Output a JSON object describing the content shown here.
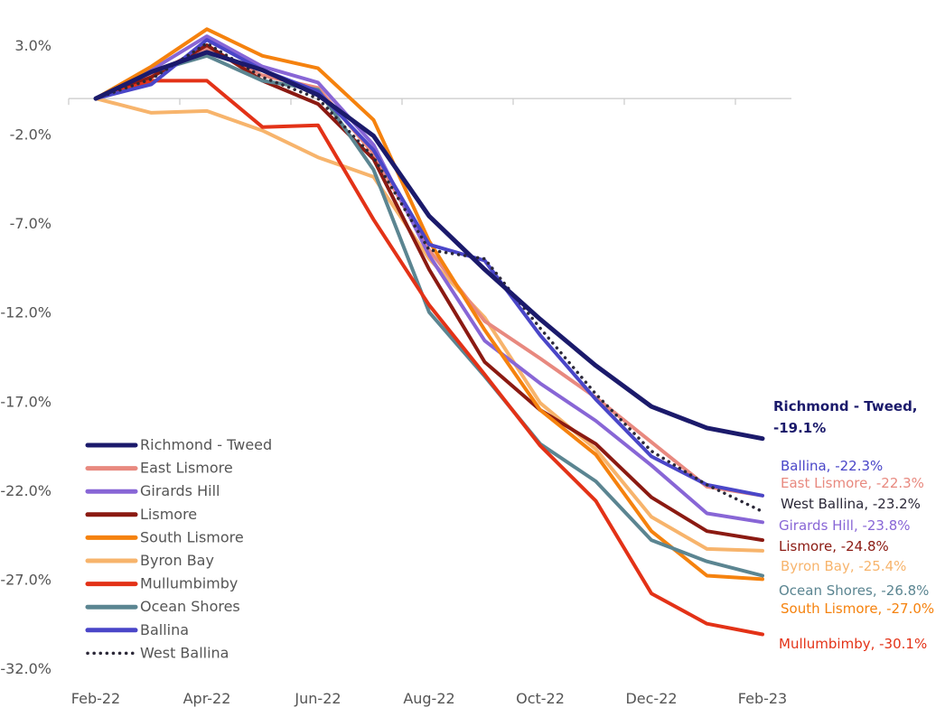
{
  "chart_data": {
    "type": "line",
    "x": [
      "Feb-22",
      "Mar-22",
      "Apr-22",
      "May-22",
      "Jun-22",
      "Jul-22",
      "Aug-22",
      "Sep-22",
      "Oct-22",
      "Nov-22",
      "Dec-22",
      "Jan-23",
      "Feb-23"
    ],
    "x_tick_labels": [
      "Feb-22",
      "Apr-22",
      "Jun-22",
      "Aug-22",
      "Oct-22",
      "Dec-22",
      "Feb-23"
    ],
    "y_tick_labels": [
      "3.0%",
      "-2.0%",
      "-7.0%",
      "-12.0%",
      "-17.0%",
      "-22.0%",
      "-27.0%",
      "-32.0%"
    ],
    "ylim": [
      -32,
      3
    ],
    "series": [
      {
        "name": "Richmond - Tweed",
        "color": "#1b1a6b",
        "dash": false,
        "end_label": "Richmond - Tweed,",
        "end_label_2": "-19.1%",
        "values": [
          0,
          1.5,
          2.6,
          1.6,
          0.2,
          -2.1,
          -6.6,
          -9.6,
          -12.4,
          -15,
          -17.3,
          -18.5,
          -19.1
        ]
      },
      {
        "name": "East Lismore",
        "color": "#e8897f",
        "dash": false,
        "end_label": "East Lismore, -22.3%",
        "values": [
          0,
          1.4,
          2.8,
          1.3,
          0.6,
          -3.1,
          -8.5,
          -12.5,
          -14.6,
          -16.8,
          -19.3,
          -21.8,
          -22.3
        ]
      },
      {
        "name": "Girards Hill",
        "color": "#8866d6",
        "dash": false,
        "end_label": "Girards Hill, -23.8%",
        "values": [
          0,
          1.6,
          3.5,
          1.8,
          0.9,
          -2.6,
          -8.8,
          -13.6,
          -16.0,
          -18.1,
          -20.6,
          -23.3,
          -23.8
        ]
      },
      {
        "name": "Lismore",
        "color": "#8b1a12",
        "dash": false,
        "end_label": "Lismore, -24.8%",
        "values": [
          0,
          1.2,
          3.0,
          1.0,
          -0.3,
          -3.4,
          -9.6,
          -14.8,
          -17.5,
          -19.4,
          -22.4,
          -24.3,
          -24.8
        ]
      },
      {
        "name": "South Lismore",
        "color": "#f5820e",
        "dash": false,
        "end_label": "South Lismore, -27.0%",
        "values": [
          0,
          1.8,
          3.9,
          2.4,
          1.7,
          -1.2,
          -8.0,
          -13.0,
          -17.5,
          -20.0,
          -24.3,
          -26.8,
          -27.0
        ]
      },
      {
        "name": "Byron Bay",
        "color": "#f7b46c",
        "dash": false,
        "end_label": "Byron Bay, -25.4%",
        "values": [
          0,
          -0.8,
          -0.7,
          -1.8,
          -3.3,
          -4.4,
          -9.0,
          -12.3,
          -17.1,
          -19.7,
          -23.5,
          -25.3,
          -25.4
        ]
      },
      {
        "name": "Mullumbimby",
        "color": "#e33217",
        "dash": false,
        "end_label": "Mullumbimby, -30.1%",
        "values": [
          0,
          1.0,
          1.0,
          -1.6,
          -1.5,
          -6.8,
          -11.6,
          -15.5,
          -19.5,
          -22.6,
          -27.8,
          -29.5,
          -30.1
        ]
      },
      {
        "name": "Ocean Shores",
        "color": "#5b8591",
        "dash": false,
        "end_label": "Ocean Shores, -26.8%",
        "values": [
          0,
          1.5,
          2.4,
          1.0,
          0.5,
          -4.0,
          -12.0,
          -15.6,
          -19.4,
          -21.5,
          -24.8,
          -26.0,
          -26.8
        ]
      },
      {
        "name": "Ballina",
        "color": "#4a46c8",
        "dash": false,
        "end_label": "Ballina, -22.3%",
        "values": [
          0,
          0.8,
          3.3,
          1.6,
          0.4,
          -2.9,
          -8.2,
          -9.1,
          -13.3,
          -16.9,
          -20.1,
          -21.7,
          -22.3
        ]
      },
      {
        "name": "West Ballina",
        "color": "#2b2838",
        "dash": true,
        "end_label": "West Ballina, -23.2%",
        "values": [
          0,
          1.1,
          3.1,
          1.2,
          0.0,
          -3.3,
          -8.5,
          -9.0,
          -12.9,
          -16.6,
          -19.8,
          -21.7,
          -23.2
        ]
      }
    ]
  }
}
